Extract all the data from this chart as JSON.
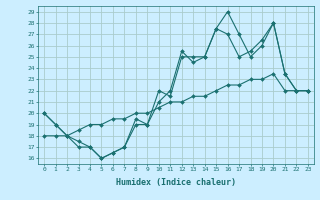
{
  "xlabel": "Humidex (Indice chaleur)",
  "background_color": "#cceeff",
  "grid_color": "#aacccc",
  "line_color": "#1a7070",
  "xlim": [
    -0.5,
    23.5
  ],
  "ylim": [
    15.5,
    29.5
  ],
  "yticks": [
    16,
    17,
    18,
    19,
    20,
    21,
    22,
    23,
    24,
    25,
    26,
    27,
    28,
    29
  ],
  "xticks": [
    0,
    1,
    2,
    3,
    4,
    5,
    6,
    7,
    8,
    9,
    10,
    11,
    12,
    13,
    14,
    15,
    16,
    17,
    18,
    19,
    20,
    21,
    22,
    23
  ],
  "line1_y": [
    20,
    19,
    18,
    17,
    17,
    16,
    16.5,
    17,
    19.5,
    19,
    22,
    21.5,
    25,
    25,
    25,
    27.5,
    29,
    27,
    25,
    26,
    28,
    23.5,
    22,
    22
  ],
  "line2_y": [
    20,
    19,
    18,
    17.5,
    17,
    16,
    16.5,
    17,
    19,
    19,
    21,
    22,
    25.5,
    24.5,
    25,
    27.5,
    27,
    25,
    25.5,
    26.5,
    28,
    23.5,
    22,
    22
  ],
  "line3_y": [
    18,
    18,
    18,
    18.5,
    19,
    19,
    19.5,
    19.5,
    20,
    20,
    20.5,
    21,
    21,
    21.5,
    21.5,
    22,
    22.5,
    22.5,
    23,
    23,
    23.5,
    22,
    22,
    22
  ]
}
